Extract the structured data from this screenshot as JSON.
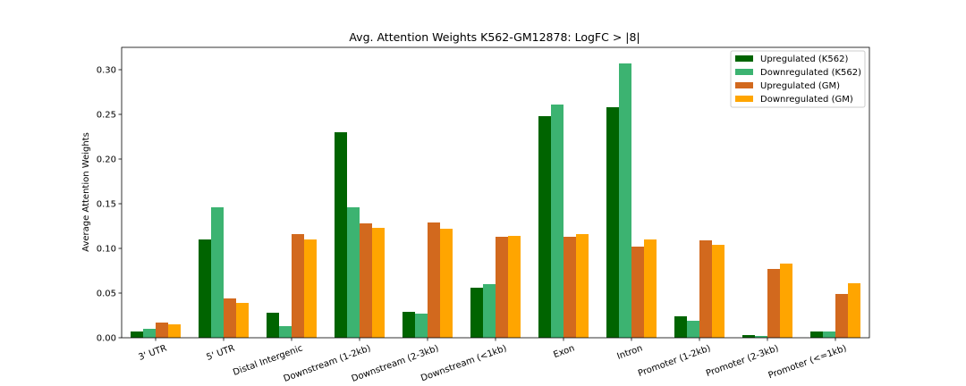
{
  "chart_data": {
    "type": "bar",
    "title": "Avg. Attention Weights K562-GM12878: LogFC > |8|",
    "xlabel": "",
    "ylabel": "Average Attention Weights",
    "ylim": [
      0,
      0.325
    ],
    "yticks": [
      "0.00",
      "0.05",
      "0.10",
      "0.15",
      "0.20",
      "0.25",
      "0.30"
    ],
    "ytick_values": [
      0,
      0.05,
      0.1,
      0.15,
      0.2,
      0.25,
      0.3
    ],
    "grid": false,
    "legend_position": "top-right",
    "categories": [
      "3' UTR",
      "5' UTR",
      "Distal Intergenic",
      "Downstream (1-2kb)",
      "Downstream (2-3kb)",
      "Downstream (<1kb)",
      "Exon",
      "Intron",
      "Promoter (1-2kb)",
      "Promoter (2-3kb)",
      "Promoter (<=1kb)"
    ],
    "series": [
      {
        "name": "Upregulated (K562)",
        "color": "#006400",
        "values": [
          0.007,
          0.11,
          0.028,
          0.23,
          0.029,
          0.056,
          0.248,
          0.258,
          0.024,
          0.003,
          0.007
        ]
      },
      {
        "name": "Downregulated (K562)",
        "color": "#3cb371",
        "values": [
          0.01,
          0.146,
          0.013,
          0.146,
          0.027,
          0.06,
          0.261,
          0.307,
          0.019,
          0.002,
          0.007
        ]
      },
      {
        "name": "Upregulated (GM)",
        "color": "#d2691e",
        "values": [
          0.017,
          0.044,
          0.116,
          0.128,
          0.129,
          0.113,
          0.113,
          0.102,
          0.109,
          0.077,
          0.049
        ]
      },
      {
        "name": "Downregulated (GM)",
        "color": "#ffa500",
        "values": [
          0.015,
          0.039,
          0.11,
          0.123,
          0.122,
          0.114,
          0.116,
          0.11,
          0.104,
          0.083,
          0.061
        ]
      }
    ]
  }
}
